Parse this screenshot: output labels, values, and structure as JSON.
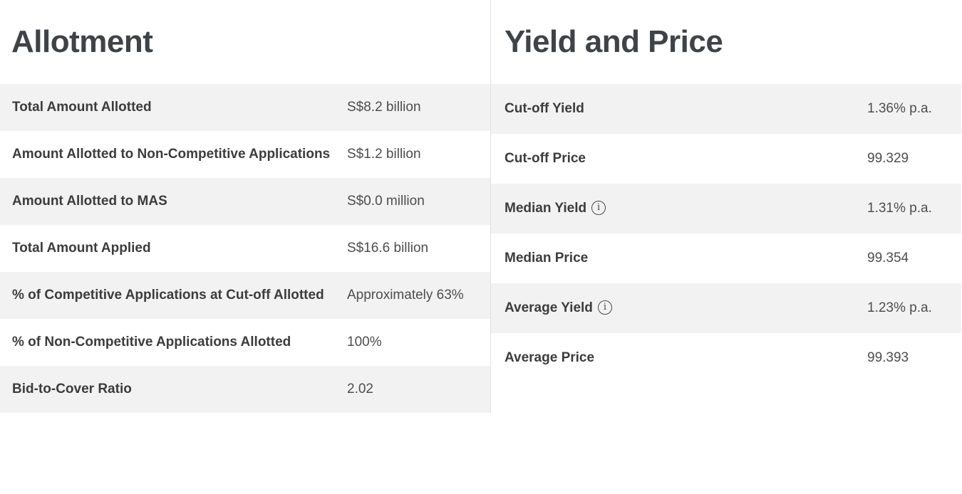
{
  "panels": {
    "allotment": {
      "title": "Allotment",
      "rows": [
        {
          "label": "Total Amount Allotted",
          "value": "S$8.2 billion"
        },
        {
          "label": "Amount Allotted to Non-Competitive Applications",
          "value": "S$1.2 billion"
        },
        {
          "label": "Amount Allotted to MAS",
          "value": "S$0.0 million"
        },
        {
          "label": "Total Amount Applied",
          "value": "S$16.6 billion"
        },
        {
          "label": "% of Competitive Applications at Cut-off Allotted",
          "value": "Approximately 63%"
        },
        {
          "label": "% of Non-Competitive Applications Allotted",
          "value": "100%"
        },
        {
          "label": "Bid-to-Cover Ratio",
          "value": "2.02"
        }
      ]
    },
    "yield_and_price": {
      "title": "Yield and Price",
      "rows": [
        {
          "label": "Cut-off Yield",
          "value": "1.36% p.a."
        },
        {
          "label": "Cut-off Price",
          "value": "99.329"
        },
        {
          "label": "Median Yield",
          "value": "1.31% p.a.",
          "has_info": true
        },
        {
          "label": "Median Price",
          "value": "99.354"
        },
        {
          "label": "Average Yield",
          "value": "1.23% p.a.",
          "has_info": true
        },
        {
          "label": "Average Price",
          "value": "99.393"
        }
      ]
    }
  },
  "icons": {
    "info": "i"
  },
  "colors": {
    "row_alt_bg": "#f2f2f2",
    "divider": "#e0e0e0",
    "heading": "#3f4347",
    "label": "#3c3c3c",
    "value": "#4d4d4d",
    "page_bg": "#ffffff"
  }
}
